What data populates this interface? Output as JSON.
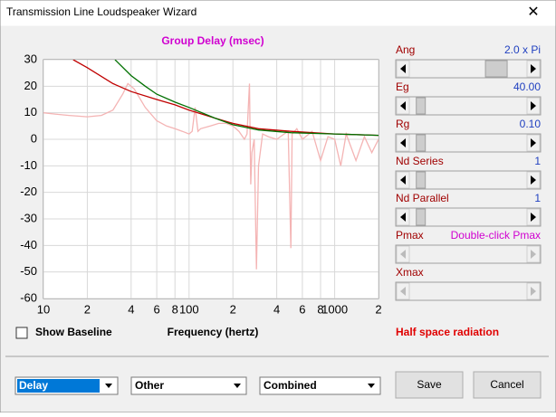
{
  "window": {
    "title": "Transmission Line Loudspeaker Wizard"
  },
  "chart_data": {
    "type": "line",
    "title": "Group Delay (msec)",
    "x_label": "Frequency (hertz)",
    "xscale": "log",
    "xlim": [
      10,
      2000
    ],
    "xticks": [
      10,
      {
        "value": 20,
        "label": "2"
      },
      {
        "value": 40,
        "label": "4"
      },
      {
        "value": 60,
        "label": "6"
      },
      {
        "value": 80,
        "label": "8"
      },
      100,
      {
        "value": 200,
        "label": "2"
      },
      {
        "value": 400,
        "label": "4"
      },
      {
        "value": 600,
        "label": "6"
      },
      {
        "value": 800,
        "label": "8"
      },
      1000,
      {
        "value": 2000,
        "label": "2"
      }
    ],
    "ylim": [
      -60,
      30
    ],
    "yticks": [
      -60,
      -50,
      -40,
      -30,
      -20,
      -10,
      0,
      10,
      20,
      30
    ],
    "grid": true,
    "series": [
      {
        "color": "#f4b4b4",
        "x": [
          10,
          12,
          15,
          20,
          25,
          30,
          35,
          38,
          42,
          50,
          60,
          70,
          80,
          90,
          100,
          105,
          110,
          115,
          120,
          140,
          160,
          180,
          200,
          220,
          240,
          250,
          260,
          265,
          270,
          280,
          290,
          300,
          320,
          350,
          400,
          450,
          480,
          500,
          510,
          550,
          600,
          700,
          800,
          900,
          1000,
          1100,
          1200,
          1400,
          1600,
          1800,
          2000
        ],
        "values": [
          10,
          9.5,
          9,
          8.5,
          9,
          11,
          17,
          21,
          19,
          12,
          7,
          5,
          4,
          3,
          2,
          3,
          12,
          3,
          4,
          5,
          6,
          6,
          5,
          3,
          0,
          2,
          21,
          -17,
          -5,
          0,
          -49,
          -10,
          2,
          1,
          0,
          2,
          3,
          -41,
          2,
          4,
          0,
          3,
          -8,
          1,
          0,
          -10,
          2,
          -8,
          1,
          -5,
          0
        ]
      },
      {
        "color": "#c00000",
        "x": [
          16,
          20,
          30,
          40,
          60,
          80,
          100,
          150,
          200,
          300,
          500,
          1000,
          2000
        ],
        "values": [
          30,
          27,
          21,
          18,
          15,
          13,
          11,
          8,
          6,
          4,
          3,
          2,
          1.5
        ]
      },
      {
        "color": "#007000",
        "x": [
          31,
          40,
          50,
          60,
          80,
          100,
          150,
          200,
          300,
          500,
          1000,
          2000
        ],
        "values": [
          30,
          24,
          20,
          17,
          14,
          12,
          8,
          5.5,
          3.5,
          2.5,
          2,
          1.5
        ]
      }
    ]
  },
  "controls": {
    "show_baseline": "Show Baseline",
    "sliders": [
      {
        "label": "Ang",
        "value": "2.0 x Pi"
      },
      {
        "label": "Eg",
        "value": "40.00"
      },
      {
        "label": "Rg",
        "value": "0.10"
      },
      {
        "label": "Nd  Series",
        "value": "1"
      },
      {
        "label": "Nd  Parallel",
        "value": "1"
      },
      {
        "label": "Pmax",
        "value": "Double-click Pmax"
      },
      {
        "label": "Xmax"
      }
    ],
    "radiation": "Half space radiation",
    "combos": [
      "Delay",
      "Other",
      "Combined"
    ],
    "buttons": [
      "Save",
      "Cancel"
    ]
  }
}
